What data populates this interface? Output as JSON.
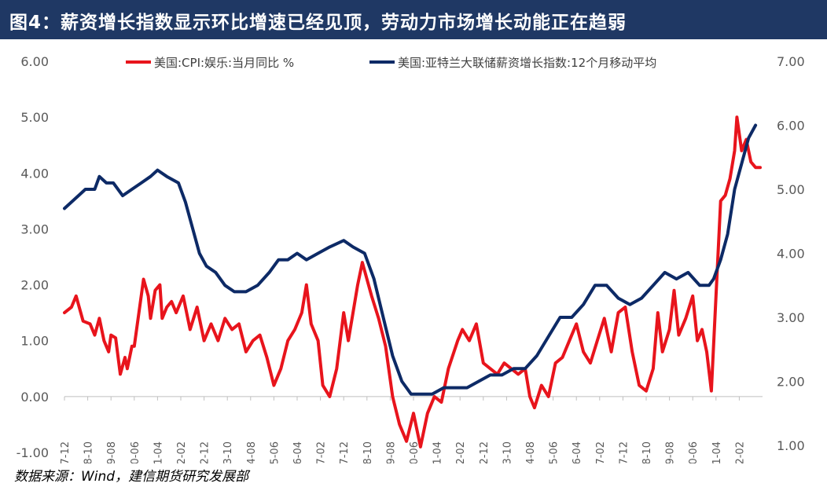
{
  "header": {
    "title": "图4：薪资增长指数显示环比增速已经见顶，劳动力市场增长动能正在趋弱"
  },
  "source": {
    "text": "数据来源：Wind，建信期货研究发展部"
  },
  "chart_data": {
    "type": "line",
    "title": "",
    "legend_position": "top",
    "grid": false,
    "x_tick_labels": [
      "1997-12",
      "1998-10",
      "1999-08",
      "2000-06",
      "2001-04",
      "2002-02",
      "2002-12",
      "2003-10",
      "2004-08",
      "2005-06",
      "2006-04",
      "2007-02",
      "2007-12",
      "2008-10",
      "2009-08",
      "2010-06",
      "2011-04",
      "2012-02",
      "2012-12",
      "2013-10",
      "2014-08",
      "2015-06",
      "2016-04",
      "2017-02",
      "2017-12",
      "2018-10",
      "2019-08",
      "2020-06",
      "2021-04",
      "2022-02"
    ],
    "x_range": [
      "1997-12",
      "2022-12"
    ],
    "y_left": {
      "range": [
        -1.0,
        6.0
      ],
      "tick_labels": [
        "6.00",
        "5.00",
        "4.00",
        "3.00",
        "2.00",
        "1.00",
        "0.00",
        "-1.00"
      ]
    },
    "y_right": {
      "range": [
        1.0,
        7.0
      ],
      "tick_labels": [
        "7.00",
        "6.00",
        "5.00",
        "4.00",
        "3.00",
        "2.00",
        "1.00"
      ]
    },
    "series": [
      {
        "name": "美国:CPI:娱乐:当月同比 %",
        "color": "#e8141c",
        "axis": "left",
        "points": [
          [
            "1997-12",
            1.5
          ],
          [
            "1998-03",
            1.6
          ],
          [
            "1998-05",
            1.8
          ],
          [
            "1998-08",
            1.35
          ],
          [
            "1998-11",
            1.3
          ],
          [
            "1999-01",
            1.1
          ],
          [
            "1999-03",
            1.4
          ],
          [
            "1999-05",
            1.0
          ],
          [
            "1999-07",
            0.8
          ],
          [
            "1999-08",
            1.1
          ],
          [
            "1999-10",
            1.05
          ],
          [
            "1999-12",
            0.4
          ],
          [
            "2000-02",
            0.7
          ],
          [
            "2000-03",
            0.5
          ],
          [
            "2000-05",
            0.9
          ],
          [
            "2000-06",
            0.9
          ],
          [
            "2000-08",
            1.5
          ],
          [
            "2000-10",
            2.1
          ],
          [
            "2000-12",
            1.8
          ],
          [
            "2001-01",
            1.4
          ],
          [
            "2001-03",
            1.9
          ],
          [
            "2001-05",
            2.0
          ],
          [
            "2001-06",
            1.4
          ],
          [
            "2001-08",
            1.6
          ],
          [
            "2001-10",
            1.7
          ],
          [
            "2001-12",
            1.5
          ],
          [
            "2002-03",
            1.8
          ],
          [
            "2002-06",
            1.2
          ],
          [
            "2002-09",
            1.6
          ],
          [
            "2002-12",
            1.0
          ],
          [
            "2003-03",
            1.3
          ],
          [
            "2003-06",
            1.0
          ],
          [
            "2003-09",
            1.4
          ],
          [
            "2003-12",
            1.2
          ],
          [
            "2004-03",
            1.3
          ],
          [
            "2004-06",
            0.8
          ],
          [
            "2004-09",
            1.0
          ],
          [
            "2004-12",
            1.1
          ],
          [
            "2005-03",
            0.7
          ],
          [
            "2005-06",
            0.2
          ],
          [
            "2005-09",
            0.5
          ],
          [
            "2005-12",
            1.0
          ],
          [
            "2006-03",
            1.2
          ],
          [
            "2006-06",
            1.5
          ],
          [
            "2006-08",
            2.0
          ],
          [
            "2006-10",
            1.3
          ],
          [
            "2007-01",
            1.0
          ],
          [
            "2007-03",
            0.2
          ],
          [
            "2007-06",
            0.0
          ],
          [
            "2007-09",
            0.5
          ],
          [
            "2007-12",
            1.5
          ],
          [
            "2008-02",
            1.0
          ],
          [
            "2008-06",
            2.0
          ],
          [
            "2008-08",
            2.4
          ],
          [
            "2008-10",
            2.1
          ],
          [
            "2008-12",
            1.8
          ],
          [
            "2009-03",
            1.4
          ],
          [
            "2009-06",
            0.9
          ],
          [
            "2009-09",
            0.0
          ],
          [
            "2009-12",
            -0.5
          ],
          [
            "2010-03",
            -0.8
          ],
          [
            "2010-06",
            -0.3
          ],
          [
            "2010-09",
            -0.9
          ],
          [
            "2010-12",
            -0.3
          ],
          [
            "2011-03",
            0.0
          ],
          [
            "2011-06",
            -0.1
          ],
          [
            "2011-09",
            0.5
          ],
          [
            "2012-01",
            1.0
          ],
          [
            "2012-03",
            1.2
          ],
          [
            "2012-06",
            1.0
          ],
          [
            "2012-09",
            1.3
          ],
          [
            "2012-12",
            0.6
          ],
          [
            "2013-03",
            0.5
          ],
          [
            "2013-06",
            0.4
          ],
          [
            "2013-09",
            0.6
          ],
          [
            "2013-12",
            0.5
          ],
          [
            "2014-03",
            0.4
          ],
          [
            "2014-06",
            0.5
          ],
          [
            "2014-08",
            0.0
          ],
          [
            "2014-10",
            -0.2
          ],
          [
            "2015-01",
            0.2
          ],
          [
            "2015-04",
            0.0
          ],
          [
            "2015-07",
            0.6
          ],
          [
            "2015-10",
            0.7
          ],
          [
            "2016-01",
            1.0
          ],
          [
            "2016-04",
            1.3
          ],
          [
            "2016-07",
            0.8
          ],
          [
            "2016-10",
            0.6
          ],
          [
            "2017-01",
            1.0
          ],
          [
            "2017-04",
            1.4
          ],
          [
            "2017-07",
            0.8
          ],
          [
            "2017-10",
            1.5
          ],
          [
            "2018-01",
            1.6
          ],
          [
            "2018-04",
            0.8
          ],
          [
            "2018-07",
            0.2
          ],
          [
            "2018-10",
            0.1
          ],
          [
            "2019-01",
            0.5
          ],
          [
            "2019-03",
            1.5
          ],
          [
            "2019-05",
            0.8
          ],
          [
            "2019-08",
            1.2
          ],
          [
            "2019-10",
            1.9
          ],
          [
            "2019-12",
            1.1
          ],
          [
            "2020-03",
            1.4
          ],
          [
            "2020-06",
            1.8
          ],
          [
            "2020-08",
            1.0
          ],
          [
            "2020-10",
            1.2
          ],
          [
            "2020-12",
            0.8
          ],
          [
            "2021-02",
            0.1
          ],
          [
            "2021-04",
            1.8
          ],
          [
            "2021-06",
            3.5
          ],
          [
            "2021-08",
            3.6
          ],
          [
            "2021-10",
            3.9
          ],
          [
            "2021-12",
            4.4
          ],
          [
            "2022-01",
            5.0
          ],
          [
            "2022-03",
            4.4
          ],
          [
            "2022-05",
            4.6
          ],
          [
            "2022-07",
            4.2
          ],
          [
            "2022-09",
            4.1
          ],
          [
            "2022-11",
            4.1
          ]
        ]
      },
      {
        "name": "美国:亚特兰大联储薪资增长指数:12个月移动平均",
        "color": "#0d2a66",
        "axis": "right",
        "points": [
          [
            "1997-12",
            4.7
          ],
          [
            "1998-06",
            4.9
          ],
          [
            "1998-09",
            5.0
          ],
          [
            "1999-01",
            5.0
          ],
          [
            "1999-03",
            5.2
          ],
          [
            "1999-06",
            5.1
          ],
          [
            "1999-09",
            5.1
          ],
          [
            "2000-01",
            4.9
          ],
          [
            "2000-05",
            5.0
          ],
          [
            "2000-09",
            5.1
          ],
          [
            "2001-01",
            5.2
          ],
          [
            "2001-04",
            5.3
          ],
          [
            "2001-08",
            5.2
          ],
          [
            "2002-01",
            5.1
          ],
          [
            "2002-04",
            4.8
          ],
          [
            "2002-07",
            4.4
          ],
          [
            "2002-10",
            4.0
          ],
          [
            "2003-01",
            3.8
          ],
          [
            "2003-05",
            3.7
          ],
          [
            "2003-09",
            3.5
          ],
          [
            "2004-01",
            3.4
          ],
          [
            "2004-06",
            3.4
          ],
          [
            "2004-11",
            3.5
          ],
          [
            "2005-04",
            3.7
          ],
          [
            "2005-08",
            3.9
          ],
          [
            "2005-12",
            3.9
          ],
          [
            "2006-04",
            4.0
          ],
          [
            "2006-08",
            3.9
          ],
          [
            "2007-01",
            4.0
          ],
          [
            "2007-06",
            4.1
          ],
          [
            "2007-12",
            4.2
          ],
          [
            "2008-04",
            4.1
          ],
          [
            "2008-09",
            4.0
          ],
          [
            "2009-01",
            3.6
          ],
          [
            "2009-05",
            3.0
          ],
          [
            "2009-09",
            2.4
          ],
          [
            "2010-01",
            2.0
          ],
          [
            "2010-05",
            1.8
          ],
          [
            "2010-09",
            1.8
          ],
          [
            "2011-02",
            1.8
          ],
          [
            "2011-07",
            1.9
          ],
          [
            "2011-12",
            1.9
          ],
          [
            "2012-05",
            1.9
          ],
          [
            "2012-10",
            2.0
          ],
          [
            "2013-03",
            2.1
          ],
          [
            "2013-08",
            2.1
          ],
          [
            "2014-01",
            2.2
          ],
          [
            "2014-06",
            2.2
          ],
          [
            "2014-11",
            2.4
          ],
          [
            "2015-04",
            2.7
          ],
          [
            "2015-09",
            3.0
          ],
          [
            "2016-02",
            3.0
          ],
          [
            "2016-07",
            3.2
          ],
          [
            "2016-12",
            3.5
          ],
          [
            "2017-05",
            3.5
          ],
          [
            "2017-10",
            3.3
          ],
          [
            "2018-03",
            3.2
          ],
          [
            "2018-08",
            3.3
          ],
          [
            "2019-01",
            3.5
          ],
          [
            "2019-06",
            3.7
          ],
          [
            "2019-11",
            3.6
          ],
          [
            "2020-04",
            3.7
          ],
          [
            "2020-09",
            3.5
          ],
          [
            "2021-01",
            3.5
          ],
          [
            "2021-03",
            3.6
          ],
          [
            "2021-06",
            3.9
          ],
          [
            "2021-09",
            4.3
          ],
          [
            "2021-12",
            5.0
          ],
          [
            "2022-03",
            5.4
          ],
          [
            "2022-06",
            5.8
          ],
          [
            "2022-09",
            6.0
          ]
        ]
      }
    ]
  }
}
